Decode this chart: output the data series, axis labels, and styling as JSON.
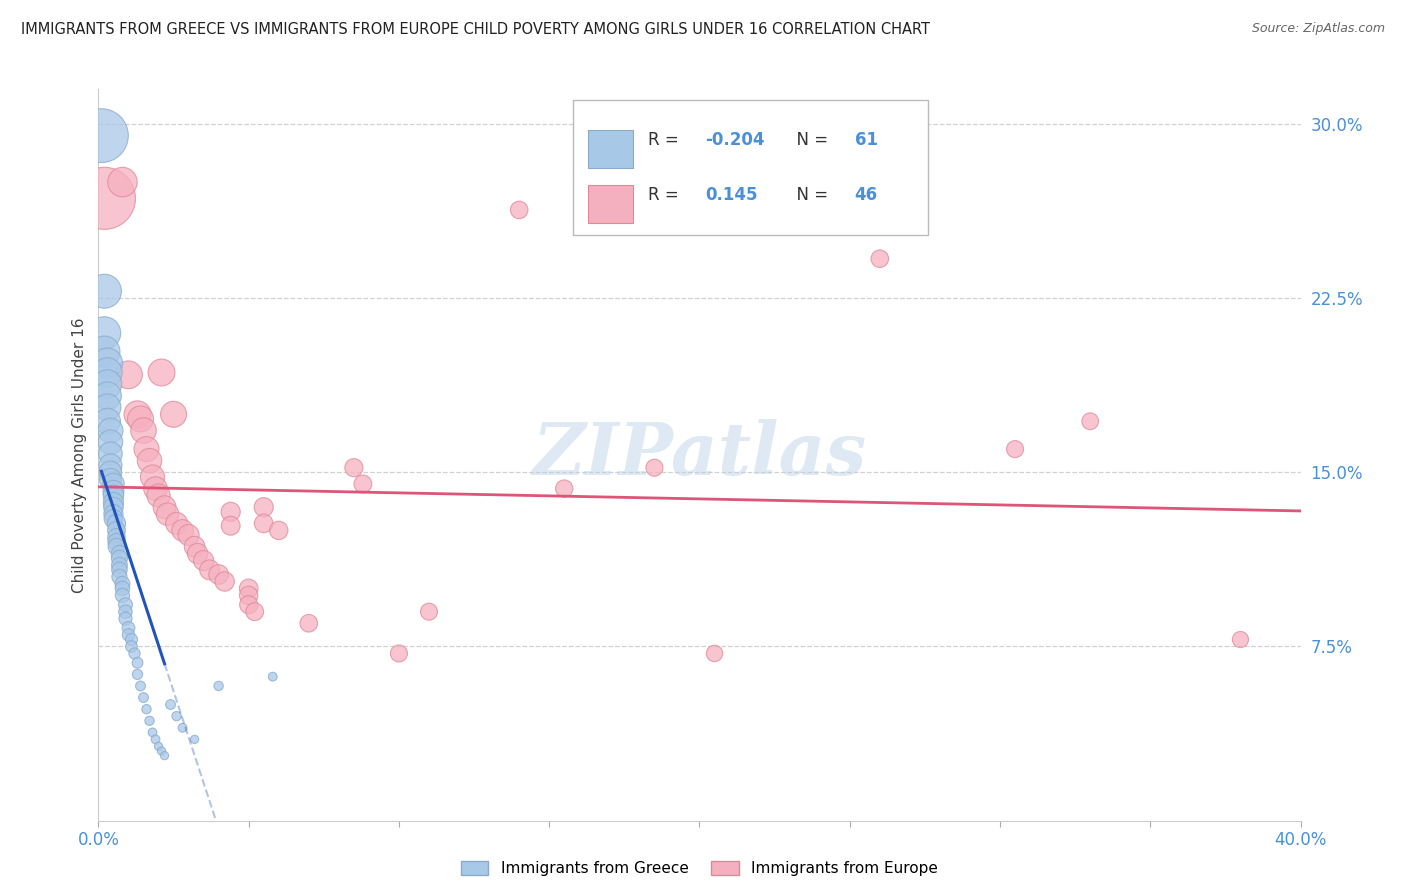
{
  "title": "IMMIGRANTS FROM GREECE VS IMMIGRANTS FROM EUROPE CHILD POVERTY AMONG GIRLS UNDER 16 CORRELATION CHART",
  "source": "Source: ZipAtlas.com",
  "ylabel": "Child Poverty Among Girls Under 16",
  "xlim": [
    0.0,
    0.4
  ],
  "ylim": [
    0.0,
    0.315
  ],
  "yticks": [
    0.075,
    0.15,
    0.225,
    0.3
  ],
  "ytick_labels": [
    "7.5%",
    "15.0%",
    "22.5%",
    "30.0%"
  ],
  "xtick_left_label": "0.0%",
  "xtick_right_label": "40.0%",
  "legend_greece_R": "-0.204",
  "legend_greece_N": "61",
  "legend_europe_R": "0.145",
  "legend_europe_N": "46",
  "greece_color": "#a8c8e8",
  "europe_color": "#f5b0c0",
  "greece_edge_color": "#88aacc",
  "europe_edge_color": "#e08898",
  "greece_line_color": "#2255bb",
  "europe_line_color": "#dd5577",
  "watermark": "ZIPatlas",
  "greece_points": [
    [
      0.001,
      0.295
    ],
    [
      0.002,
      0.228
    ],
    [
      0.002,
      0.21
    ],
    [
      0.002,
      0.202
    ],
    [
      0.003,
      0.197
    ],
    [
      0.003,
      0.193
    ],
    [
      0.003,
      0.188
    ],
    [
      0.003,
      0.183
    ],
    [
      0.003,
      0.178
    ],
    [
      0.003,
      0.172
    ],
    [
      0.004,
      0.168
    ],
    [
      0.004,
      0.163
    ],
    [
      0.004,
      0.158
    ],
    [
      0.004,
      0.153
    ],
    [
      0.004,
      0.15
    ],
    [
      0.004,
      0.147
    ],
    [
      0.005,
      0.145
    ],
    [
      0.005,
      0.142
    ],
    [
      0.005,
      0.14
    ],
    [
      0.005,
      0.137
    ],
    [
      0.005,
      0.135
    ],
    [
      0.005,
      0.132
    ],
    [
      0.005,
      0.13
    ],
    [
      0.006,
      0.128
    ],
    [
      0.006,
      0.125
    ],
    [
      0.006,
      0.122
    ],
    [
      0.006,
      0.12
    ],
    [
      0.006,
      0.118
    ],
    [
      0.007,
      0.115
    ],
    [
      0.007,
      0.113
    ],
    [
      0.007,
      0.11
    ],
    [
      0.007,
      0.108
    ],
    [
      0.007,
      0.105
    ],
    [
      0.008,
      0.102
    ],
    [
      0.008,
      0.1
    ],
    [
      0.008,
      0.097
    ],
    [
      0.009,
      0.093
    ],
    [
      0.009,
      0.09
    ],
    [
      0.009,
      0.087
    ],
    [
      0.01,
      0.083
    ],
    [
      0.01,
      0.08
    ],
    [
      0.011,
      0.078
    ],
    [
      0.011,
      0.075
    ],
    [
      0.012,
      0.072
    ],
    [
      0.013,
      0.068
    ],
    [
      0.013,
      0.063
    ],
    [
      0.014,
      0.058
    ],
    [
      0.015,
      0.053
    ],
    [
      0.016,
      0.048
    ],
    [
      0.017,
      0.043
    ],
    [
      0.018,
      0.038
    ],
    [
      0.019,
      0.035
    ],
    [
      0.02,
      0.032
    ],
    [
      0.021,
      0.03
    ],
    [
      0.022,
      0.028
    ],
    [
      0.024,
      0.05
    ],
    [
      0.026,
      0.045
    ],
    [
      0.028,
      0.04
    ],
    [
      0.032,
      0.035
    ],
    [
      0.04,
      0.058
    ],
    [
      0.058,
      0.062
    ]
  ],
  "europe_points": [
    [
      0.002,
      0.268
    ],
    [
      0.008,
      0.275
    ],
    [
      0.01,
      0.192
    ],
    [
      0.013,
      0.175
    ],
    [
      0.014,
      0.173
    ],
    [
      0.015,
      0.168
    ],
    [
      0.016,
      0.16
    ],
    [
      0.017,
      0.155
    ],
    [
      0.018,
      0.148
    ],
    [
      0.019,
      0.143
    ],
    [
      0.02,
      0.14
    ],
    [
      0.021,
      0.193
    ],
    [
      0.022,
      0.135
    ],
    [
      0.023,
      0.132
    ],
    [
      0.025,
      0.175
    ],
    [
      0.026,
      0.128
    ],
    [
      0.028,
      0.125
    ],
    [
      0.03,
      0.123
    ],
    [
      0.032,
      0.118
    ],
    [
      0.033,
      0.115
    ],
    [
      0.035,
      0.112
    ],
    [
      0.037,
      0.108
    ],
    [
      0.04,
      0.106
    ],
    [
      0.042,
      0.103
    ],
    [
      0.044,
      0.133
    ],
    [
      0.044,
      0.127
    ],
    [
      0.05,
      0.1
    ],
    [
      0.05,
      0.097
    ],
    [
      0.05,
      0.093
    ],
    [
      0.052,
      0.09
    ],
    [
      0.055,
      0.135
    ],
    [
      0.055,
      0.128
    ],
    [
      0.06,
      0.125
    ],
    [
      0.07,
      0.085
    ],
    [
      0.085,
      0.152
    ],
    [
      0.088,
      0.145
    ],
    [
      0.1,
      0.072
    ],
    [
      0.11,
      0.09
    ],
    [
      0.14,
      0.263
    ],
    [
      0.155,
      0.143
    ],
    [
      0.185,
      0.152
    ],
    [
      0.205,
      0.072
    ],
    [
      0.26,
      0.242
    ],
    [
      0.305,
      0.16
    ],
    [
      0.33,
      0.172
    ],
    [
      0.38,
      0.078
    ]
  ],
  "greece_sizes": [
    300,
    120,
    110,
    100,
    95,
    90,
    85,
    80,
    75,
    70,
    65,
    62,
    58,
    55,
    52,
    50,
    48,
    46,
    44,
    42,
    40,
    38,
    36,
    35,
    33,
    32,
    30,
    29,
    28,
    27,
    26,
    25,
    24,
    23,
    22,
    21,
    20,
    19,
    18,
    17,
    16,
    15,
    14,
    13,
    12,
    11,
    10,
    10,
    9,
    9,
    8,
    8,
    7,
    7,
    7,
    10,
    9,
    8,
    7,
    9,
    8
  ],
  "europe_sizes": [
    400,
    90,
    80,
    75,
    70,
    68,
    65,
    62,
    60,
    58,
    56,
    75,
    54,
    52,
    70,
    50,
    48,
    46,
    44,
    43,
    42,
    41,
    40,
    39,
    38,
    37,
    36,
    35,
    34,
    33,
    38,
    36,
    35,
    32,
    34,
    33,
    30,
    30,
    32,
    31,
    30,
    28,
    32,
    30,
    29,
    27
  ]
}
